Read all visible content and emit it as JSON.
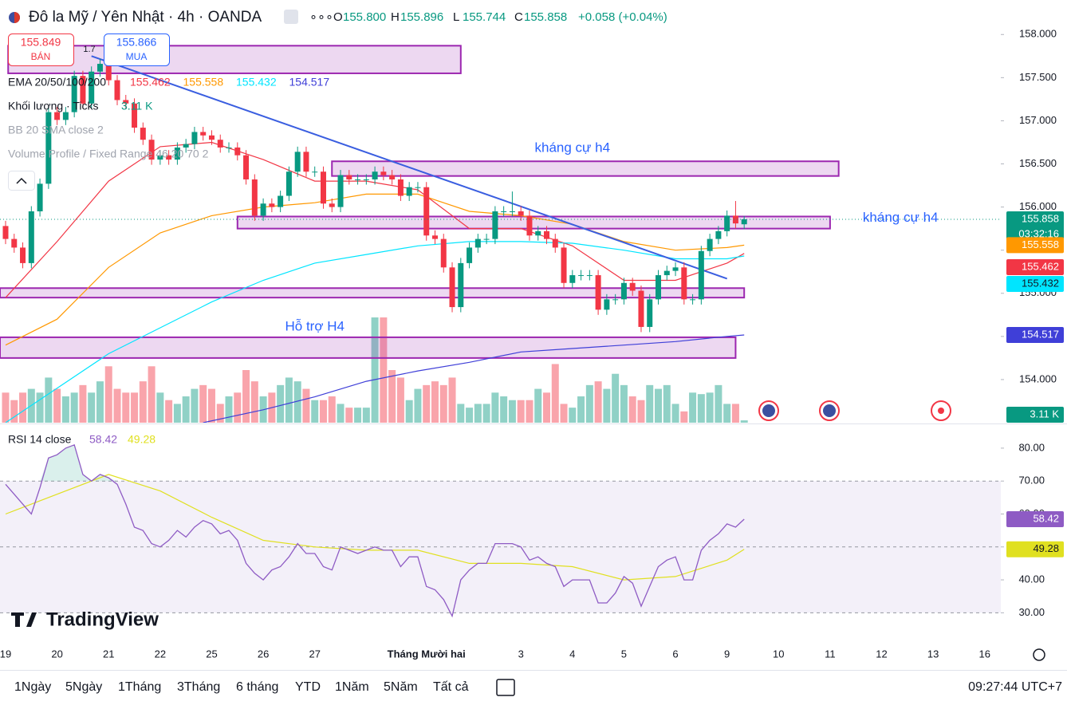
{
  "header": {
    "symbol": "Đô la Mỹ / Yên Nhật · 4h · OANDA",
    "ohlc": [
      {
        "label": "O",
        "value": "155.800"
      },
      {
        "label": "H",
        "value": "155.896"
      },
      {
        "label": "L",
        "value": "155.744"
      },
      {
        "label": "C",
        "value": "155.858"
      }
    ],
    "change": "+0.058 (+0.04%)",
    "sell": {
      "price": 155.849,
      "label": "BÁN"
    },
    "buy": {
      "price": 155.866,
      "label": "MUA"
    },
    "spread": 1.7
  },
  "legend": {
    "ema": "EMA 20/50/100/200",
    "volume": "Khối lượng · Ticks",
    "bb": "BB 20 SMA close 2",
    "vp": "Volume Profile / Fixed Range 46 20 70 2",
    "rsi": "RSI 14 close"
  },
  "toolbar": {
    "ranges": [
      "1Ngày",
      "5Ngày",
      "1Tháng",
      "3Tháng",
      "6 tháng",
      "YTD",
      "1Năm",
      "5Năm",
      "Tất cả"
    ],
    "clock": "09:27:44 UTC+7"
  },
  "logo": "TradingView",
  "chart_data": {
    "type": "candlestick",
    "up_color": "#089981",
    "down_color": "#f23645",
    "xlim": [
      -0.65,
      115.88
    ],
    "ylim": [
      153.5,
      158.4
    ],
    "yticks": [
      {
        "value": 158,
        "label": "158.000"
      },
      {
        "value": 157.5,
        "label": "157.500"
      },
      {
        "value": 157,
        "label": "157.000"
      },
      {
        "value": 156.5,
        "label": "156.500"
      },
      {
        "value": 156,
        "label": "156.000"
      },
      {
        "value": 155.5,
        "label": "155.500"
      },
      {
        "value": 155,
        "label": "155.000"
      },
      {
        "value": 154.5,
        "label": "154.500"
      },
      {
        "value": 154,
        "label": "154.000"
      }
    ],
    "categories": [
      "19",
      "20",
      "21",
      "22",
      "25",
      "26",
      "27",
      "Tháng Mười hai",
      "3",
      "4",
      "5",
      "6",
      "9",
      "10",
      "11",
      "12",
      "13",
      "16"
    ],
    "open": [
      155.78,
      155.63,
      155.53,
      155.35,
      155.95,
      156.27,
      157.1,
      157.01,
      157.1,
      157.52,
      157.2,
      157.57,
      157.66,
      157.47,
      157.24,
      157.2,
      156.92,
      156.78,
      156.55,
      156.6,
      156.55,
      156.69,
      156.73,
      156.87,
      156.83,
      156.78,
      156.69,
      156.69,
      156.6,
      156.32,
      155.9,
      156.04,
      156.0,
      156.13,
      156.41,
      156.64,
      156.41,
      156.41,
      156.04,
      156.0,
      156.37,
      156.32,
      156.32,
      156.32,
      156.41,
      156.37,
      156.32,
      156.13,
      156.23,
      156.23,
      155.67,
      155.63,
      155.3,
      154.84,
      155.35,
      155.53,
      155.63,
      155.63,
      155.95,
      155.95,
      155.95,
      155.9,
      155.67,
      155.72,
      155.63,
      155.53,
      155.12,
      155.21,
      155.21,
      155.21,
      154.81,
      154.93,
      154.93,
      155.12,
      155.03,
      154.61,
      154.93,
      155.21,
      155.26,
      155.3,
      154.93,
      154.93,
      155.49,
      155.63,
      155.72,
      155.9,
      155.8
    ],
    "high": [
      155.84,
      155.69,
      155.59,
      156.01,
      156.33,
      157.16,
      157.16,
      157.16,
      157.58,
      157.58,
      157.63,
      157.72,
      157.72,
      157.53,
      157.3,
      157.26,
      156.98,
      156.84,
      156.66,
      156.66,
      156.75,
      156.79,
      156.93,
      156.93,
      156.89,
      156.84,
      156.75,
      156.75,
      156.66,
      156.38,
      156.1,
      156.1,
      156.19,
      156.47,
      156.7,
      156.7,
      156.47,
      156.47,
      156.1,
      156.43,
      156.43,
      156.38,
      156.38,
      156.47,
      156.47,
      156.43,
      156.38,
      156.29,
      156.29,
      156.29,
      155.73,
      155.69,
      155.36,
      155.41,
      155.59,
      155.69,
      155.69,
      156.01,
      156.01,
      156.18,
      156.01,
      155.96,
      155.78,
      155.78,
      155.69,
      155.59,
      155.27,
      155.27,
      155.27,
      155.27,
      154.99,
      154.99,
      155.18,
      155.18,
      155.09,
      154.99,
      155.27,
      155.32,
      155.36,
      155.36,
      154.99,
      155.55,
      155.69,
      155.78,
      155.96,
      156.07,
      155.896
    ],
    "low": [
      155.57,
      155.47,
      155.29,
      155.29,
      155.89,
      156.21,
      156.95,
      156.95,
      157.04,
      157.14,
      157.14,
      157.51,
      157.41,
      157.18,
      157.14,
      156.86,
      156.72,
      156.49,
      156.49,
      156.49,
      156.49,
      156.63,
      156.67,
      156.77,
      156.72,
      156.63,
      156.63,
      156.54,
      156.26,
      155.84,
      155.84,
      155.94,
      155.94,
      156.07,
      156.35,
      156.35,
      156.35,
      155.98,
      155.94,
      155.94,
      156.26,
      156.26,
      156.26,
      156.26,
      156.31,
      156.26,
      156.07,
      156.07,
      156.17,
      155.61,
      155.57,
      155.24,
      154.78,
      154.78,
      155.29,
      155.47,
      155.57,
      155.57,
      155.89,
      155.89,
      155.84,
      155.61,
      155.61,
      155.57,
      155.47,
      155.06,
      155.06,
      155.15,
      155.15,
      154.75,
      154.75,
      154.87,
      154.87,
      154.97,
      154.55,
      154.55,
      154.87,
      155.15,
      155.2,
      154.87,
      154.87,
      154.87,
      155.43,
      155.57,
      155.66,
      155.75,
      155.744
    ],
    "close": [
      155.63,
      155.53,
      155.35,
      155.95,
      156.27,
      157.1,
      157.01,
      157.1,
      157.52,
      157.2,
      157.57,
      157.66,
      157.47,
      157.24,
      157.2,
      156.92,
      156.78,
      156.55,
      156.6,
      156.55,
      156.69,
      156.73,
      156.87,
      156.83,
      156.78,
      156.69,
      156.69,
      156.6,
      156.32,
      155.9,
      156.04,
      156.0,
      156.13,
      156.41,
      156.64,
      156.41,
      156.41,
      156.04,
      156.0,
      156.37,
      156.32,
      156.32,
      156.32,
      156.41,
      156.37,
      156.32,
      156.13,
      156.23,
      156.23,
      155.67,
      155.63,
      155.3,
      154.84,
      155.35,
      155.53,
      155.63,
      155.63,
      155.95,
      155.95,
      155.95,
      155.9,
      155.67,
      155.72,
      155.63,
      155.53,
      155.12,
      155.21,
      155.21,
      155.21,
      154.81,
      154.93,
      154.93,
      155.12,
      155.03,
      154.61,
      154.93,
      155.21,
      155.26,
      155.3,
      154.93,
      154.93,
      155.49,
      155.63,
      155.72,
      155.9,
      155.81,
      155.858
    ],
    "countdown": "03:32:16",
    "volume": {
      "lim": [
        0,
        140
      ],
      "last_label": "3.11 K",
      "values": [
        40,
        30,
        40,
        45,
        40,
        60,
        45,
        35,
        40,
        50,
        40,
        55,
        75,
        45,
        40,
        40,
        55,
        75,
        40,
        30,
        25,
        35,
        45,
        50,
        45,
        25,
        35,
        40,
        70,
        55,
        35,
        40,
        50,
        60,
        55,
        45,
        30,
        30,
        35,
        25,
        20,
        20,
        20,
        140,
        140,
        70,
        60,
        30,
        45,
        50,
        55,
        50,
        60,
        25,
        20,
        25,
        25,
        40,
        35,
        30,
        30,
        30,
        45,
        40,
        78,
        25,
        20,
        35,
        50,
        55,
        45,
        65,
        50,
        35,
        30,
        50,
        45,
        50,
        25,
        15,
        40,
        38,
        40,
        50,
        25,
        25,
        3.11
      ]
    },
    "ema": [
      {
        "color": "#f23645",
        "x": [
          0,
          6,
          12,
          18,
          24,
          30,
          36,
          42,
          48,
          54,
          60,
          66,
          72,
          78,
          84,
          86
        ],
        "values": [
          154.95,
          155.6,
          156.3,
          156.7,
          156.75,
          156.55,
          156.3,
          156.3,
          156.2,
          155.75,
          155.75,
          155.55,
          155.15,
          155.15,
          155.35,
          155.462
        ]
      },
      {
        "color": "#ff9800",
        "x": [
          0,
          6,
          12,
          18,
          24,
          30,
          36,
          42,
          48,
          54,
          60,
          66,
          72,
          78,
          84,
          86
        ],
        "values": [
          154.4,
          154.7,
          155.3,
          155.7,
          155.9,
          156.0,
          156.05,
          156.15,
          156.15,
          155.95,
          155.9,
          155.8,
          155.6,
          155.5,
          155.53,
          155.558
        ]
      },
      {
        "color": "#00e5ff",
        "x": [
          0,
          6,
          12,
          18,
          24,
          30,
          36,
          42,
          48,
          54,
          60,
          66,
          72,
          78,
          84,
          86
        ],
        "values": [
          153.5,
          153.9,
          154.3,
          154.6,
          154.9,
          155.15,
          155.35,
          155.45,
          155.55,
          155.6,
          155.6,
          155.58,
          155.5,
          155.4,
          155.4,
          155.432
        ]
      },
      {
        "color": "#3f3fd8",
        "x": [
          23,
          30,
          36,
          42,
          48,
          54,
          60,
          66,
          72,
          78,
          84,
          86
        ],
        "values": [
          153.5,
          153.65,
          153.8,
          153.98,
          154.1,
          154.2,
          154.32,
          154.36,
          154.4,
          154.44,
          154.5,
          154.517
        ]
      }
    ],
    "zones": [
      {
        "top": 157.87,
        "bottom": 157.55,
        "x": [
          0.3,
          53
        ]
      },
      {
        "top": 156.53,
        "bottom": 156.36,
        "x": [
          38,
          97
        ]
      },
      {
        "top": 155.89,
        "bottom": 155.75,
        "x": [
          27,
          96
        ]
      },
      {
        "top": 155.06,
        "bottom": 154.95,
        "x": [
          -0.65,
          86
        ]
      },
      {
        "top": 154.49,
        "bottom": 154.25,
        "x": [
          -0.65,
          85
        ]
      }
    ],
    "trendline": {
      "x": [
        10,
        84
      ],
      "values": [
        157.75,
        155.17
      ],
      "color": "#3a5ee0"
    },
    "annotations": [
      {
        "text": "kháng cự h4",
        "x": 66,
        "y": 156.68
      },
      {
        "text": "kháng cự h4",
        "x": 104.2,
        "y": 155.87
      },
      {
        "text": "Hỗ trợ H4",
        "x": 36,
        "y": 154.61
      }
    ],
    "rsi": {
      "color": "#8e5bc4",
      "ylim": [
        25,
        87
      ],
      "yticks": [
        {
          "value": 80,
          "label": "80.00"
        },
        {
          "value": 70,
          "label": "70.00"
        },
        {
          "value": 60,
          "label": "60.00"
        },
        {
          "value": 50,
          "label": "50.00"
        },
        {
          "value": 40,
          "label": "40.00"
        },
        {
          "value": 30,
          "label": "30.00"
        }
      ],
      "values": [
        69,
        66,
        63,
        60,
        68,
        77,
        78,
        80,
        81,
        72,
        70,
        72,
        71,
        69,
        63,
        56,
        55,
        51,
        50,
        52,
        55,
        53,
        56,
        58,
        57,
        54,
        55,
        52,
        45,
        42,
        40,
        43,
        44,
        47,
        51,
        48,
        48,
        44,
        43,
        50,
        49,
        48,
        49,
        50,
        49,
        49,
        44,
        47,
        47,
        38,
        37,
        34,
        29,
        40,
        43,
        45,
        45,
        51,
        51,
        51,
        50,
        46,
        47,
        45,
        44,
        38,
        40,
        40,
        40,
        33,
        33,
        36,
        41,
        39,
        32,
        38,
        44,
        46,
        47,
        40,
        40,
        49,
        52,
        54,
        57,
        56,
        58.42
      ],
      "ma": {
        "color": "#e0e020",
        "x": [
          0,
          6,
          12,
          18,
          24,
          30,
          36,
          42,
          48,
          54,
          60,
          66,
          72,
          78,
          84,
          86
        ],
        "values": [
          60,
          66,
          72,
          67,
          59,
          52,
          50,
          49,
          49,
          45,
          45,
          44,
          40,
          41,
          46,
          49.28
        ]
      }
    }
  }
}
